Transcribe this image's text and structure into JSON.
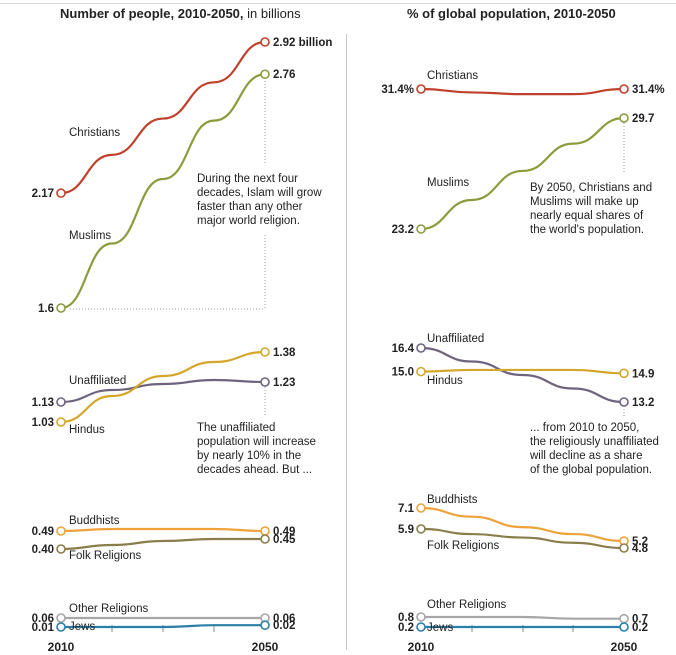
{
  "chart_data": [
    {
      "type": "line",
      "title": "Number of people, 2010-2050,",
      "title_suffix": "in billions",
      "xlabel": "",
      "ylabel": "",
      "x": [
        2010,
        2050
      ],
      "x_tick_labels": [
        "2010",
        "2050"
      ],
      "panels": [
        {
          "name": "top",
          "series": [
            {
              "name": "Christians",
              "color": "#c0412b",
              "values": [
                2.17,
                2.92
              ],
              "path": [
                2.17,
                2.36,
                2.54,
                2.72,
                2.92
              ],
              "start_label": "2.17",
              "end_label": "2.92 billion"
            },
            {
              "name": "Muslims",
              "color": "#8b9c3e",
              "values": [
                1.6,
                2.76
              ],
              "path": [
                1.6,
                1.92,
                2.24,
                2.53,
                2.76
              ],
              "start_label": "1.6",
              "end_label": "2.76"
            }
          ],
          "annotation": "During the next four\ndecades, Islam will grow\nfaster than any other\nmajor world religion."
        },
        {
          "name": "middle",
          "series": [
            {
              "name": "Unaffiliated",
              "color": "#6e6480",
              "values": [
                1.13,
                1.23
              ],
              "path": [
                1.13,
                1.19,
                1.22,
                1.24,
                1.23
              ],
              "start_label": "1.13",
              "end_label": "1.23"
            },
            {
              "name": "Hindus",
              "color": "#d4a72c",
              "values": [
                1.03,
                1.38
              ],
              "path": [
                1.03,
                1.16,
                1.26,
                1.33,
                1.38
              ],
              "start_label": "1.03",
              "end_label": "1.38"
            }
          ],
          "annotation": "The unaffiliated\npopulation will increase\nby nearly 10% in the\ndecades ahead. But ..."
        },
        {
          "name": "lower",
          "series": [
            {
              "name": "Buddhists",
              "color": "#eea23a",
              "values": [
                0.49,
                0.49
              ],
              "path": [
                0.49,
                0.5,
                0.5,
                0.5,
                0.49
              ],
              "start_label": "0.49",
              "end_label": "0.49"
            },
            {
              "name": "Folk Religions",
              "color": "#8a7d4c",
              "values": [
                0.4,
                0.45
              ],
              "path": [
                0.4,
                0.42,
                0.44,
                0.45,
                0.45
              ],
              "start_label": "0.40",
              "end_label": "0.45"
            }
          ]
        },
        {
          "name": "bottom",
          "series": [
            {
              "name": "Other Religions",
              "color": "#a6a6a6",
              "values": [
                0.06,
                0.06
              ],
              "path": [
                0.06,
                0.06,
                0.06,
                0.06,
                0.06
              ],
              "start_label": "0.06",
              "end_label": "0.06"
            },
            {
              "name": "Jews",
              "color": "#2a7fa8",
              "values": [
                0.01,
                0.02
              ],
              "path": [
                0.01,
                0.01,
                0.01,
                0.02,
                0.02
              ],
              "start_label": "0.01",
              "end_label": "0.02"
            }
          ]
        }
      ]
    },
    {
      "type": "line",
      "title": "% of global population, 2010-2050",
      "xlabel": "",
      "ylabel": "",
      "x": [
        2010,
        2050
      ],
      "x_tick_labels": [
        "2010",
        "2050"
      ],
      "panels": [
        {
          "name": "top",
          "series": [
            {
              "name": "Christians",
              "color": "#c0412b",
              "values": [
                31.4,
                31.4
              ],
              "path": [
                31.4,
                31.2,
                31.1,
                31.1,
                31.4
              ],
              "start_label": "31.4%",
              "end_label": "31.4%"
            },
            {
              "name": "Muslims",
              "color": "#8b9c3e",
              "values": [
                23.2,
                29.7
              ],
              "path": [
                23.2,
                24.9,
                26.6,
                28.2,
                29.7
              ],
              "start_label": "23.2",
              "end_label": "29.7"
            }
          ],
          "annotation": "By 2050, Christians and\nMuslims will make up\nnearly equal shares of\nthe world's population."
        },
        {
          "name": "middle",
          "series": [
            {
              "name": "Unaffiliated",
              "color": "#6e6480",
              "values": [
                16.4,
                13.2
              ],
              "path": [
                16.4,
                15.6,
                14.8,
                14.0,
                13.2
              ],
              "start_label": "16.4",
              "end_label": "13.2"
            },
            {
              "name": "Hindus",
              "color": "#d4a72c",
              "values": [
                15.0,
                14.9
              ],
              "path": [
                15.0,
                15.1,
                15.1,
                15.1,
                14.9
              ],
              "start_label": "15.0",
              "end_label": "14.9"
            }
          ],
          "annotation": "... from 2010 to 2050,\nthe religiously unaffiliated\nwill decline as a share\nof the global population."
        },
        {
          "name": "lower",
          "series": [
            {
              "name": "Buddhists",
              "color": "#eea23a",
              "values": [
                7.1,
                5.2
              ],
              "path": [
                7.1,
                6.6,
                6.0,
                5.6,
                5.2
              ],
              "start_label": "7.1",
              "end_label": "5.2"
            },
            {
              "name": "Folk Religions",
              "color": "#8a7d4c",
              "values": [
                5.9,
                4.8
              ],
              "path": [
                5.9,
                5.6,
                5.4,
                5.1,
                4.8
              ],
              "start_label": "5.9",
              "end_label": "4.8"
            }
          ]
        },
        {
          "name": "bottom",
          "series": [
            {
              "name": "Other Religions",
              "color": "#a6a6a6",
              "values": [
                0.8,
                0.7
              ],
              "path": [
                0.8,
                0.8,
                0.8,
                0.7,
                0.7
              ],
              "start_label": "0.8",
              "end_label": "0.7"
            },
            {
              "name": "Jews",
              "color": "#2a7fa8",
              "values": [
                0.2,
                0.2
              ],
              "path": [
                0.2,
                0.2,
                0.2,
                0.2,
                0.2
              ],
              "start_label": "0.2",
              "end_label": "0.2"
            }
          ]
        }
      ]
    }
  ]
}
